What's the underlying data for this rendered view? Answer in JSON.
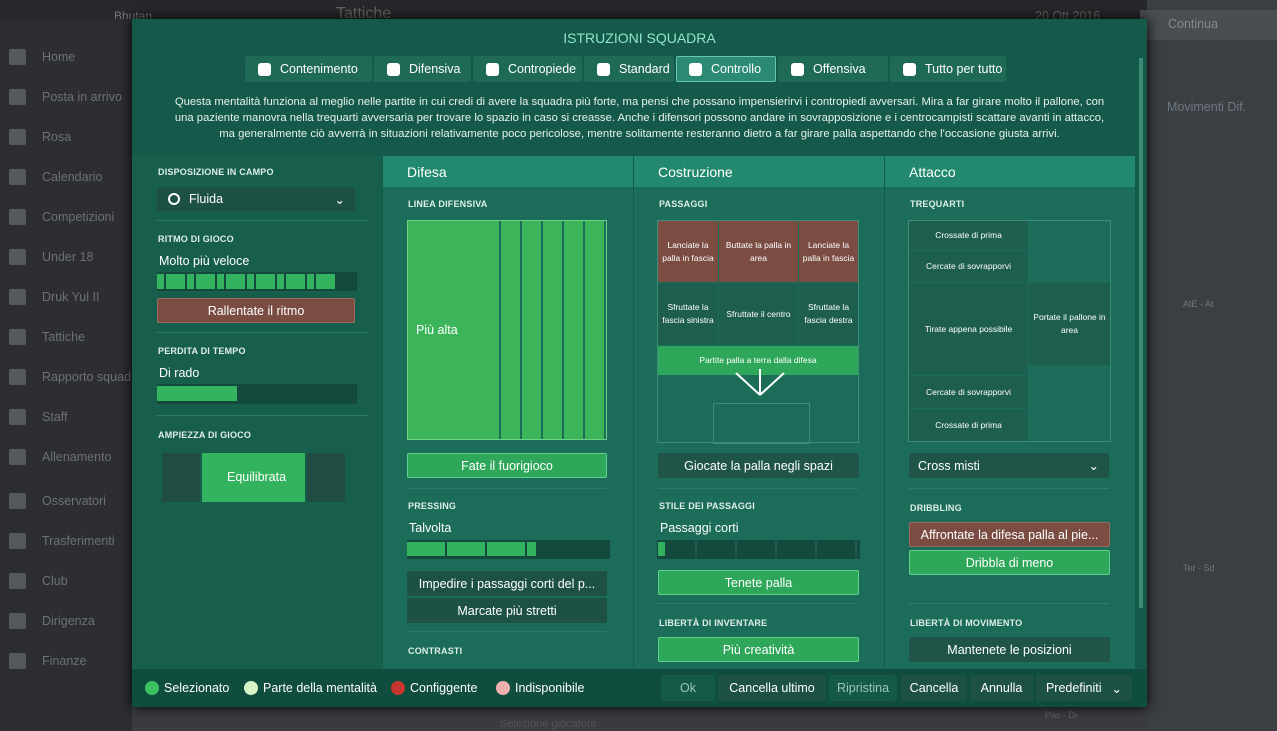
{
  "background": {
    "team": "Bhutan",
    "screen": "Tattiche",
    "date": "20 Ott 2016",
    "continue": "Continua",
    "sidebar": [
      "Home",
      "Posta in arrivo",
      "Rosa",
      "Calendario",
      "Competizioni",
      "Under 18",
      "Druk Yul II",
      "Tattiche",
      "Rapporto squad",
      "Staff",
      "Allenamento",
      "Osservatori",
      "Trasferimenti",
      "Club",
      "Dirigenza",
      "Finanze"
    ],
    "right_panel": [
      "Movimenti Dif.",
      "AtE - At",
      "Ter - Sd",
      "Pas - Di"
    ],
    "bottom": "Selezione giocatore"
  },
  "dialog": {
    "title": "ISTRUZIONI SQUADRA",
    "tabs": [
      "Contenimento",
      "Difensiva",
      "Contropiede",
      "Standard",
      "Controllo",
      "Offensiva",
      "Tutto per tutto"
    ],
    "description": [
      "Questa mentalità funziona al meglio nelle partite in cui credi di avere la squadra più forte, ma pensi che possano impensierirvi i contropiedi avversari. Mira a far girare molto il pallone, con",
      "una paziente manovra nella trequarti avversaria per trovare lo spazio in caso si creasse. Anche i difensori possono andare in sovrapposizione e i centrocampisti scattare avanti in attacco,",
      "ma generalmente ciò avverrà in situazioni relativamente poco pericolose, mentre solitamente resteranno dietro a far girare palla aspettando che l'occasione giusta arrivi."
    ],
    "left": {
      "formation_label": "DISPOSIZIONE IN CAMPO",
      "formation": "Fluida",
      "tempo_label": "RITMO DI GIOCO",
      "tempo": "Molto più veloce",
      "tempo_button": "Rallentate il ritmo",
      "time_wasting_label": "PERDITA DI TEMPO",
      "time_wasting": "Di rado",
      "width_label": "AMPIEZZA DI GIOCO",
      "width": "Equilibrata"
    },
    "defence": {
      "header": "Difesa",
      "line_label": "LINEA DIFENSIVA",
      "line": "Più alta",
      "offside": "Fate il fuorigioco",
      "pressing_label": "PRESSING",
      "pressing": "Talvolta",
      "buttons": [
        "Impedire i passaggi corti del p...",
        "Marcate più stretti"
      ],
      "tackling_label": "CONTRASTI"
    },
    "buildup": {
      "header": "Costruzione",
      "passing_label": "PASSAGGI",
      "grid": [
        "Lanciate la palla in fascia",
        "Buttate la palla in area",
        "Lanciate la palla in fascia",
        "Sfruttate la fascia sinistra",
        "Sfruttate il centro",
        "Sfruttate la fascia destra"
      ],
      "play_out": "Partite palla a terra dalla difesa",
      "space": "Giocate la palla negli spazi",
      "style_label": "STILE DEI PASSAGGI",
      "style": "Passaggi corti",
      "possession": "Tenete palla",
      "creative_label": "LIBERTÀ DI INVENTARE",
      "creative": "Più creatività"
    },
    "attack": {
      "header": "Attacco",
      "final_third_label": "TREQUARTI",
      "zones": [
        "Crossate di prima",
        "Cercate di sovrapporvi",
        "Tirate appena possibile",
        "Cercate di sovrapporvi",
        "Crossate di prima"
      ],
      "box": "Portate il pallone in area",
      "cross": "Cross misti",
      "dribbling_label": "DRIBBLING",
      "dribbling": [
        "Affrontate la difesa palla al pie...",
        "Dribbla di meno"
      ],
      "movement_label": "LIBERTÀ DI MOVIMENTO",
      "movement": "Mantenete le posizioni"
    },
    "legend": [
      "Selezionato",
      "Parte della mentalità",
      "Configgente",
      "Indisponibile"
    ],
    "buttons": [
      "Ok",
      "Cancella ultimo",
      "Ripristina",
      "Cancella",
      "Annulla",
      "Predefiniti"
    ]
  }
}
